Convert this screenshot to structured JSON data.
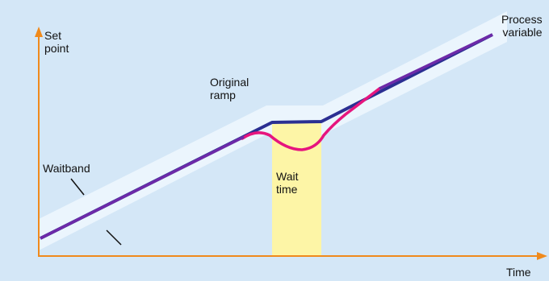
{
  "labels": {
    "set_point": "Set\npoint",
    "time": "Time",
    "process_variable": "Process\nvariable",
    "original_ramp": "Original\nramp",
    "wait_band": "Waitband",
    "wait_time": "Wait\ntime"
  },
  "colors": {
    "background": "#d4e7f7",
    "axis": "#f08a1c",
    "band": "#ebf5fd",
    "wait_zone": "#fdf5a6",
    "original_ramp": "#2b2f92",
    "process_variable": "#e6157e",
    "leader": "#111111"
  },
  "icons": {
    "axis_arrow": "arrowhead"
  }
}
